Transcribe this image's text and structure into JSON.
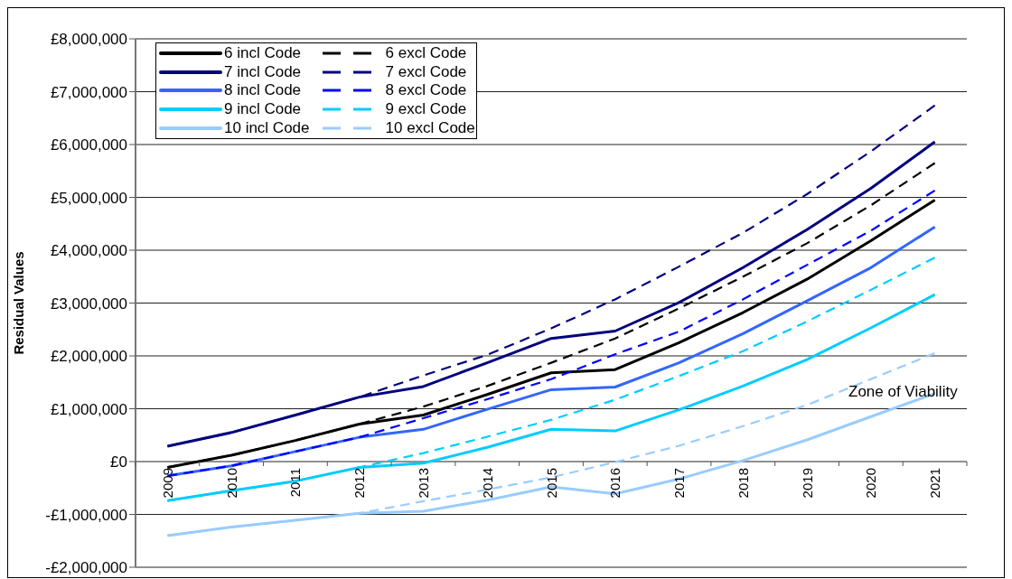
{
  "chart_data": {
    "type": "line",
    "ylabel": "Residual Values",
    "annotations": [
      "Zone of Viability"
    ],
    "categories": [
      "2009",
      "2010",
      "2011",
      "2012",
      "2013",
      "2014",
      "2015",
      "2016",
      "2017",
      "2018",
      "2019",
      "2020",
      "2021"
    ],
    "series": [
      {
        "name": "6 incl Code",
        "color": "#000000",
        "line_style": "solid",
        "values": [
          -110000,
          120000,
          400000,
          710000,
          880000,
          1270000,
          1680000,
          1740000,
          2250000,
          2820000,
          3450000,
          4180000,
          4950000
        ]
      },
      {
        "name": "7 incl Code",
        "color": "#000080",
        "line_style": "solid",
        "values": [
          290000,
          550000,
          880000,
          1220000,
          1420000,
          1870000,
          2330000,
          2470000,
          3010000,
          3670000,
          4390000,
          5170000,
          6050000
        ]
      },
      {
        "name": "8 incl Code",
        "color": "#3366ff",
        "line_style": "solid",
        "values": [
          -270000,
          -80000,
          190000,
          460000,
          610000,
          990000,
          1360000,
          1410000,
          1870000,
          2420000,
          3040000,
          3670000,
          4440000
        ]
      },
      {
        "name": "9 incl Code",
        "color": "#00ccff",
        "line_style": "solid",
        "values": [
          -740000,
          -550000,
          -370000,
          -110000,
          -30000,
          270000,
          610000,
          580000,
          980000,
          1430000,
          1930000,
          2530000,
          3160000
        ]
      },
      {
        "name": "10 incl Code",
        "color": "#99ccff",
        "line_style": "solid",
        "values": [
          -1400000,
          -1240000,
          -1110000,
          -980000,
          -940000,
          -730000,
          -480000,
          -610000,
          -330000,
          20000,
          410000,
          850000,
          1290000
        ]
      },
      {
        "name": "6 excl Code",
        "color": "#000000",
        "line_style": "dashed",
        "values": [
          -110000,
          120000,
          400000,
          710000,
          1040000,
          1430000,
          1870000,
          2330000,
          2900000,
          3500000,
          4130000,
          4850000,
          5650000
        ]
      },
      {
        "name": "7 excl Code",
        "color": "#000080",
        "line_style": "dashed",
        "values": [
          290000,
          550000,
          880000,
          1220000,
          1630000,
          2020000,
          2520000,
          3070000,
          3690000,
          4330000,
          5060000,
          5870000,
          6740000
        ]
      },
      {
        "name": "8 excl Code",
        "color": "#0000ff",
        "line_style": "dashed",
        "values": [
          -270000,
          -80000,
          190000,
          460000,
          820000,
          1180000,
          1560000,
          2030000,
          2460000,
          3070000,
          3720000,
          4370000,
          5130000
        ]
      },
      {
        "name": "9 excl Code",
        "color": "#00ccff",
        "line_style": "dashed",
        "values": [
          -740000,
          -550000,
          -370000,
          -110000,
          160000,
          470000,
          790000,
          1170000,
          1620000,
          2090000,
          2650000,
          3250000,
          3860000
        ]
      },
      {
        "name": "10 excl Code",
        "color": "#99ccff",
        "line_style": "dashed",
        "values": [
          -1400000,
          -1240000,
          -1110000,
          -980000,
          -750000,
          -530000,
          -300000,
          -10000,
          300000,
          670000,
          1070000,
          1560000,
          2050000
        ]
      }
    ],
    "ylim": [
      -2000000,
      8000000
    ],
    "yticks": [
      {
        "value": -2000000,
        "label": "-£2,000,000"
      },
      {
        "value": -1000000,
        "label": "-£1,000,000"
      },
      {
        "value": 0,
        "label": "£0"
      },
      {
        "value": 1000000,
        "label": "£1,000,000"
      },
      {
        "value": 2000000,
        "label": "£2,000,000"
      },
      {
        "value": 3000000,
        "label": "£3,000,000"
      },
      {
        "value": 4000000,
        "label": "£4,000,000"
      },
      {
        "value": 5000000,
        "label": "£5,000,000"
      },
      {
        "value": 6000000,
        "label": "£6,000,000"
      },
      {
        "value": 7000000,
        "label": "£7,000,000"
      },
      {
        "value": 8000000,
        "label": "£8,000,000"
      }
    ],
    "grid": "y",
    "legend": "top left",
    "marker": "none"
  }
}
